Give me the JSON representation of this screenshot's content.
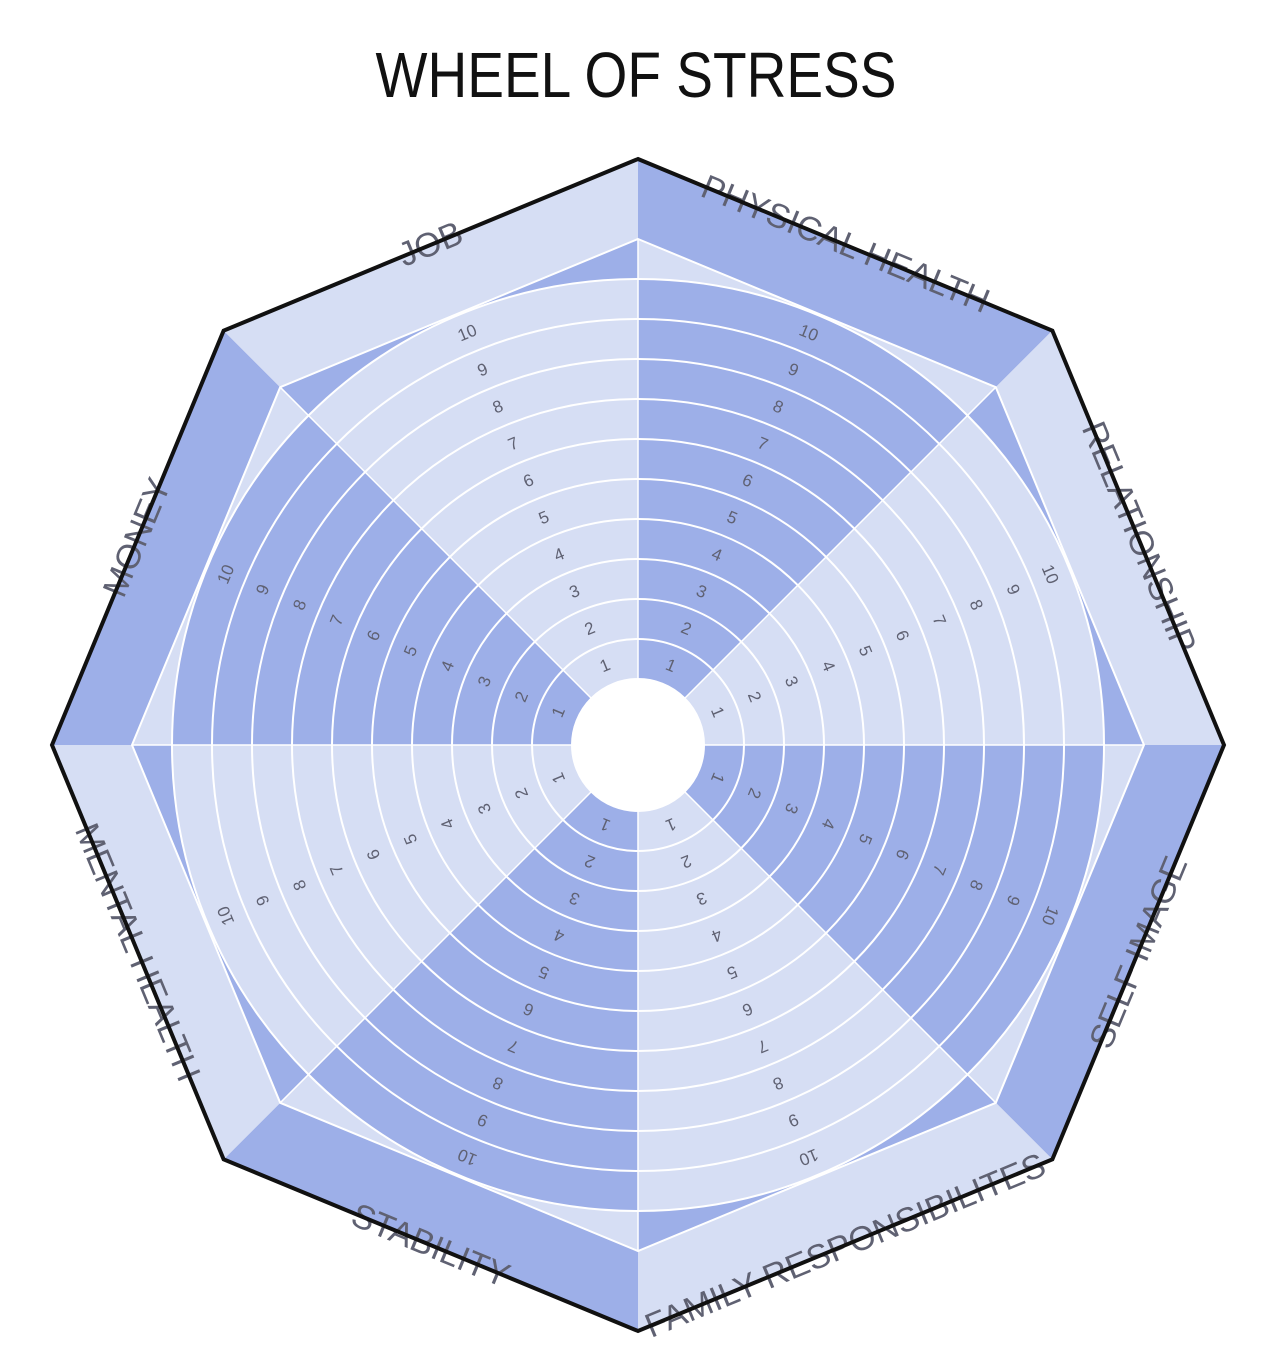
{
  "title": "WHEEL OF STRESS",
  "colors": {
    "dark": "#9dafe8",
    "light": "#d6def4",
    "ring_line": "#ffffff",
    "outline": "#111111",
    "text": "#5f6172"
  },
  "ring_numbers": [
    "1",
    "2",
    "3",
    "4",
    "5",
    "6",
    "7",
    "8",
    "9",
    "10"
  ],
  "segments": [
    {
      "label": "PHYSICAL HEALTH",
      "shade": "dark"
    },
    {
      "label": "RELATIONSHIP",
      "shade": "light"
    },
    {
      "label": "SELF IMAGE",
      "shade": "dark"
    },
    {
      "label": "FAMILY RESPONSIBILITES",
      "shade": "light"
    },
    {
      "label": "STABILITY",
      "shade": "dark"
    },
    {
      "label": "MENTAL HEALTH",
      "shade": "light"
    },
    {
      "label": "MONEY",
      "shade": "dark"
    },
    {
      "label": "JOB",
      "shade": "light"
    }
  ]
}
